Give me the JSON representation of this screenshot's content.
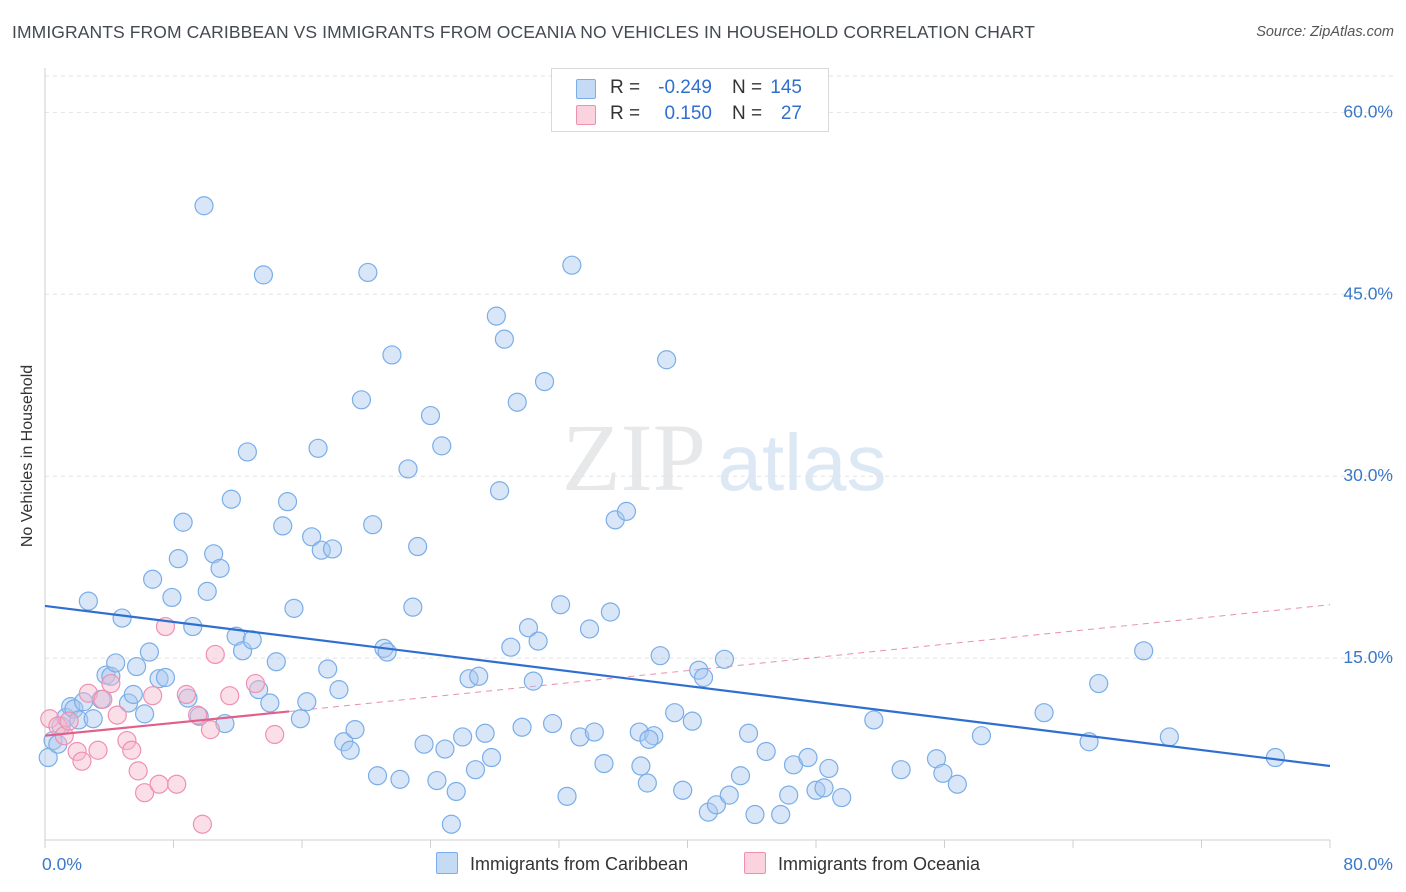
{
  "title": "IMMIGRANTS FROM CARIBBEAN VS IMMIGRANTS FROM OCEANIA NO VEHICLES IN HOUSEHOLD CORRELATION CHART",
  "source": "Source: ZipAtlas.com",
  "watermark": {
    "part1": "ZIP",
    "part2": "atlas"
  },
  "legend_top": {
    "rows": [
      {
        "r_label": "R =",
        "r_value": "-0.249",
        "n_label": "N =",
        "n_value": "145",
        "color": "#a8c8f0"
      },
      {
        "r_label": "R =",
        "r_value": "0.150",
        "n_label": "N =",
        "n_value": "27",
        "color": "#f7b8cb"
      }
    ]
  },
  "chart_data": {
    "type": "scatter",
    "title": "IMMIGRANTS FROM CARIBBEAN VS IMMIGRANTS FROM OCEANIA NO VEHICLES IN HOUSEHOLD CORRELATION CHART",
    "xlabel": "",
    "ylabel": "No Vehicles in Household",
    "xlim": [
      0,
      80
    ],
    "ylim": [
      0,
      63
    ],
    "x_tick_labels": [
      "0.0%",
      "80.0%"
    ],
    "y_ticks": [
      15,
      30,
      45,
      60
    ],
    "y_tick_labels": [
      "15.0%",
      "30.0%",
      "45.0%",
      "60.0%"
    ],
    "grid": true,
    "legend_position": "bottom",
    "series": [
      {
        "name": "Immigrants from Caribbean",
        "color": "#7aaee8",
        "fill": "#a8c8f0",
        "trendline": {
          "x": [
            0,
            80
          ],
          "y": [
            19.3,
            6.1
          ],
          "style": "solid",
          "color": "#2f6fd0"
        },
        "points": [
          [
            0.2,
            6.8
          ],
          [
            0.5,
            8.2
          ],
          [
            0.8,
            7.9
          ],
          [
            1.0,
            9.4
          ],
          [
            1.3,
            10.1
          ],
          [
            1.6,
            11.0
          ],
          [
            1.8,
            10.8
          ],
          [
            2.1,
            9.9
          ],
          [
            2.4,
            11.4
          ],
          [
            2.7,
            19.7
          ],
          [
            3.0,
            10.0
          ],
          [
            3.5,
            11.6
          ],
          [
            3.8,
            13.6
          ],
          [
            4.1,
            13.5
          ],
          [
            4.4,
            14.6
          ],
          [
            4.8,
            18.3
          ],
          [
            5.2,
            11.3
          ],
          [
            5.5,
            12.0
          ],
          [
            5.7,
            14.3
          ],
          [
            6.2,
            10.4
          ],
          [
            6.5,
            15.5
          ],
          [
            6.7,
            21.5
          ],
          [
            7.1,
            13.3
          ],
          [
            7.5,
            13.4
          ],
          [
            7.9,
            20.0
          ],
          [
            8.3,
            23.2
          ],
          [
            8.6,
            26.2
          ],
          [
            8.9,
            11.7
          ],
          [
            9.2,
            17.6
          ],
          [
            9.6,
            10.2
          ],
          [
            9.9,
            52.3
          ],
          [
            10.1,
            20.5
          ],
          [
            10.5,
            23.6
          ],
          [
            10.9,
            22.4
          ],
          [
            11.2,
            9.6
          ],
          [
            11.6,
            28.1
          ],
          [
            11.9,
            16.8
          ],
          [
            12.3,
            15.6
          ],
          [
            12.6,
            32.0
          ],
          [
            12.9,
            16.5
          ],
          [
            13.3,
            12.4
          ],
          [
            13.6,
            46.6
          ],
          [
            14.0,
            11.3
          ],
          [
            14.4,
            14.7
          ],
          [
            14.8,
            25.9
          ],
          [
            15.1,
            27.9
          ],
          [
            15.5,
            19.1
          ],
          [
            15.9,
            10.0
          ],
          [
            16.3,
            11.4
          ],
          [
            16.6,
            25.0
          ],
          [
            17.0,
            32.3
          ],
          [
            17.2,
            23.9
          ],
          [
            17.6,
            14.1
          ],
          [
            17.9,
            24.0
          ],
          [
            18.3,
            12.4
          ],
          [
            18.6,
            8.1
          ],
          [
            19.0,
            7.4
          ],
          [
            19.3,
            9.1
          ],
          [
            19.7,
            36.3
          ],
          [
            20.1,
            46.8
          ],
          [
            20.4,
            26.0
          ],
          [
            20.7,
            5.3
          ],
          [
            21.1,
            15.8
          ],
          [
            21.3,
            15.5
          ],
          [
            21.6,
            40.0
          ],
          [
            22.1,
            5.0
          ],
          [
            22.6,
            30.6
          ],
          [
            22.9,
            19.2
          ],
          [
            23.2,
            24.2
          ],
          [
            23.6,
            7.9
          ],
          [
            24.0,
            35.0
          ],
          [
            24.4,
            4.9
          ],
          [
            24.7,
            32.5
          ],
          [
            24.9,
            7.5
          ],
          [
            25.3,
            1.3
          ],
          [
            25.6,
            4.0
          ],
          [
            26.0,
            8.5
          ],
          [
            26.4,
            13.3
          ],
          [
            26.8,
            5.8
          ],
          [
            27.0,
            13.5
          ],
          [
            27.4,
            8.8
          ],
          [
            27.8,
            6.8
          ],
          [
            28.1,
            43.2
          ],
          [
            28.3,
            28.8
          ],
          [
            28.6,
            41.3
          ],
          [
            29.0,
            15.9
          ],
          [
            29.4,
            36.1
          ],
          [
            29.7,
            9.3
          ],
          [
            30.1,
            17.5
          ],
          [
            30.4,
            13.1
          ],
          [
            30.7,
            16.4
          ],
          [
            31.1,
            37.8
          ],
          [
            31.6,
            9.6
          ],
          [
            32.1,
            19.4
          ],
          [
            32.5,
            3.6
          ],
          [
            32.8,
            47.4
          ],
          [
            33.3,
            8.5
          ],
          [
            33.9,
            17.4
          ],
          [
            34.2,
            8.9
          ],
          [
            34.8,
            6.3
          ],
          [
            35.2,
            18.8
          ],
          [
            35.5,
            26.4
          ],
          [
            36.2,
            27.1
          ],
          [
            37.0,
            8.9
          ],
          [
            37.5,
            4.7
          ],
          [
            37.9,
            8.6
          ],
          [
            37.1,
            6.1
          ],
          [
            37.6,
            8.3
          ],
          [
            38.3,
            15.2
          ],
          [
            38.7,
            39.6
          ],
          [
            39.2,
            10.5
          ],
          [
            39.7,
            4.1
          ],
          [
            40.3,
            9.8
          ],
          [
            40.7,
            14.0
          ],
          [
            41.0,
            13.4
          ],
          [
            41.3,
            2.3
          ],
          [
            41.8,
            2.9
          ],
          [
            42.3,
            14.9
          ],
          [
            42.6,
            3.7
          ],
          [
            43.3,
            5.3
          ],
          [
            43.8,
            8.8
          ],
          [
            44.2,
            2.1
          ],
          [
            44.9,
            7.3
          ],
          [
            45.8,
            2.1
          ],
          [
            46.3,
            3.7
          ],
          [
            46.6,
            6.2
          ],
          [
            47.5,
            6.8
          ],
          [
            48.0,
            4.1
          ],
          [
            48.5,
            4.3
          ],
          [
            48.8,
            5.9
          ],
          [
            49.6,
            3.5
          ],
          [
            51.6,
            9.9
          ],
          [
            53.3,
            5.8
          ],
          [
            55.5,
            6.7
          ],
          [
            55.9,
            5.5
          ],
          [
            56.8,
            4.6
          ],
          [
            58.3,
            8.6
          ],
          [
            62.2,
            10.5
          ],
          [
            65.0,
            8.1
          ],
          [
            65.6,
            12.9
          ],
          [
            68.4,
            15.6
          ],
          [
            76.6,
            6.8
          ],
          [
            70.0,
            8.5
          ]
        ]
      },
      {
        "name": "Immigrants from Oceania",
        "color": "#f090b0",
        "fill": "#f7b8cb",
        "trendline": {
          "x": [
            0,
            15.2
          ],
          "y": [
            8.6,
            10.6
          ],
          "style": "solid",
          "color": "#e0608a",
          "extension": {
            "x": [
              15.2,
              80
            ],
            "y": [
              10.6,
              19.4
            ],
            "style": "dashed"
          }
        },
        "points": [
          [
            0.3,
            10.0
          ],
          [
            0.8,
            9.4
          ],
          [
            1.2,
            8.6
          ],
          [
            1.5,
            9.8
          ],
          [
            2.0,
            7.3
          ],
          [
            2.3,
            6.5
          ],
          [
            2.7,
            12.1
          ],
          [
            3.3,
            7.4
          ],
          [
            3.6,
            11.6
          ],
          [
            4.1,
            12.9
          ],
          [
            4.5,
            10.3
          ],
          [
            5.1,
            8.2
          ],
          [
            5.4,
            7.4
          ],
          [
            5.8,
            5.7
          ],
          [
            6.2,
            3.9
          ],
          [
            6.7,
            11.9
          ],
          [
            7.1,
            4.6
          ],
          [
            7.5,
            17.6
          ],
          [
            8.2,
            4.6
          ],
          [
            8.8,
            12.0
          ],
          [
            9.5,
            10.3
          ],
          [
            9.8,
            1.3
          ],
          [
            10.3,
            9.1
          ],
          [
            10.6,
            15.3
          ],
          [
            11.5,
            11.9
          ],
          [
            13.1,
            12.9
          ],
          [
            14.3,
            8.7
          ]
        ]
      }
    ]
  },
  "legend_bottom": [
    {
      "label": "Immigrants from Caribbean",
      "color": "#a8c8f0"
    },
    {
      "label": "Immigrants from Oceania",
      "color": "#f7b8cb"
    }
  ]
}
